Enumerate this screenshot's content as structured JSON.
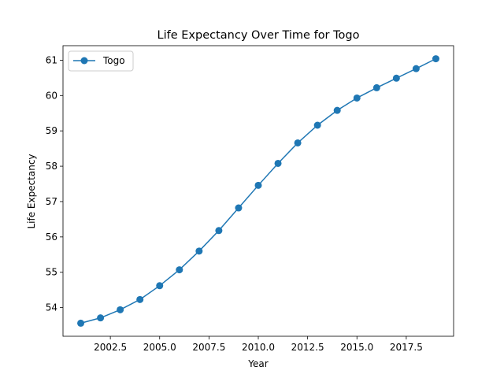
{
  "chart_data": {
    "type": "line",
    "title": "Life Expectancy Over Time for Togo",
    "xlabel": "Year",
    "ylabel": "Life Expectancy",
    "x": [
      2001,
      2002,
      2003,
      2004,
      2005,
      2006,
      2007,
      2008,
      2009,
      2010,
      2011,
      2012,
      2013,
      2014,
      2015,
      2016,
      2017,
      2018,
      2019
    ],
    "series": [
      {
        "name": "Togo",
        "color": "#1f77b4",
        "marker": "circle",
        "values": [
          53.56,
          53.71,
          53.94,
          54.23,
          54.62,
          55.07,
          55.6,
          56.18,
          56.82,
          57.46,
          58.08,
          58.66,
          59.16,
          59.58,
          59.93,
          60.22,
          60.49,
          60.76,
          61.04
        ]
      }
    ],
    "xlim": [
      2000.1,
      2019.9
    ],
    "ylim": [
      53.19,
      61.41
    ],
    "xticks": [
      2002.5,
      2005.0,
      2007.5,
      2010.0,
      2012.5,
      2015.0,
      2017.5
    ],
    "xtick_labels": [
      "2002.5",
      "2005.0",
      "2007.5",
      "2010.0",
      "2012.5",
      "2015.0",
      "2017.5"
    ],
    "yticks": [
      54,
      55,
      56,
      57,
      58,
      59,
      60,
      61
    ],
    "ytick_labels": [
      "54",
      "55",
      "56",
      "57",
      "58",
      "59",
      "60",
      "61"
    ],
    "grid": false,
    "legend": "top-left"
  }
}
